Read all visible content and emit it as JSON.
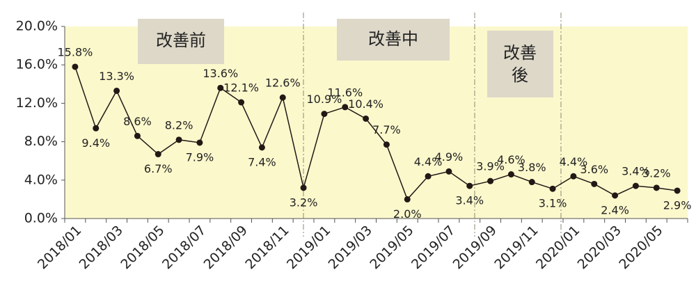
{
  "chart_data": {
    "type": "line",
    "categories": [
      "2018/01",
      null,
      "2018/03",
      null,
      "2018/05",
      null,
      "2018/07",
      null,
      "2018/09",
      null,
      "2018/11",
      null,
      "2019/01",
      null,
      "2019/03",
      null,
      "2019/05",
      null,
      "2019/07",
      null,
      "2019/09",
      null,
      "2019/11",
      null,
      "2020/01",
      null,
      "2020/03",
      null,
      "2020/05",
      null
    ],
    "values": [
      15.8,
      9.4,
      13.3,
      8.6,
      6.7,
      8.2,
      7.9,
      13.6,
      12.1,
      7.4,
      12.6,
      3.2,
      10.9,
      11.6,
      10.4,
      7.7,
      2.0,
      4.4,
      4.9,
      3.4,
      3.9,
      4.6,
      3.8,
      3.1,
      4.4,
      3.6,
      2.4,
      3.4,
      3.2,
      2.9
    ],
    "value_labels": [
      "15.8%",
      "9.4%",
      "13.3%",
      "8.6%",
      "6.7%",
      "8.2%",
      "7.9%",
      "13.6%",
      "12.1%",
      "7.4%",
      "12.6%",
      "3.2%",
      "10.9%",
      "11.6%",
      "10.4%",
      "7.7%",
      "2.0%",
      "4.4%",
      "4.9%",
      "3.4%",
      "3.9%",
      "4.6%",
      "3.8%",
      "3.1%",
      "4.4%",
      "3.6%",
      "2.4%",
      "3.4%",
      "3.2%",
      "2.9%"
    ],
    "color": "#231815",
    "ylim": [
      0,
      20
    ],
    "yticks": [
      {
        "value": 0,
        "label": "0.0%"
      },
      {
        "value": 4,
        "label": "4.0%"
      },
      {
        "value": 8,
        "label": "8.0%"
      },
      {
        "value": 12,
        "label": "12.0%"
      },
      {
        "value": 16,
        "label": "16.0%"
      },
      {
        "value": 20,
        "label": "20.0%"
      }
    ],
    "annotations": [
      "改善前",
      "改善中",
      "改善後"
    ]
  }
}
